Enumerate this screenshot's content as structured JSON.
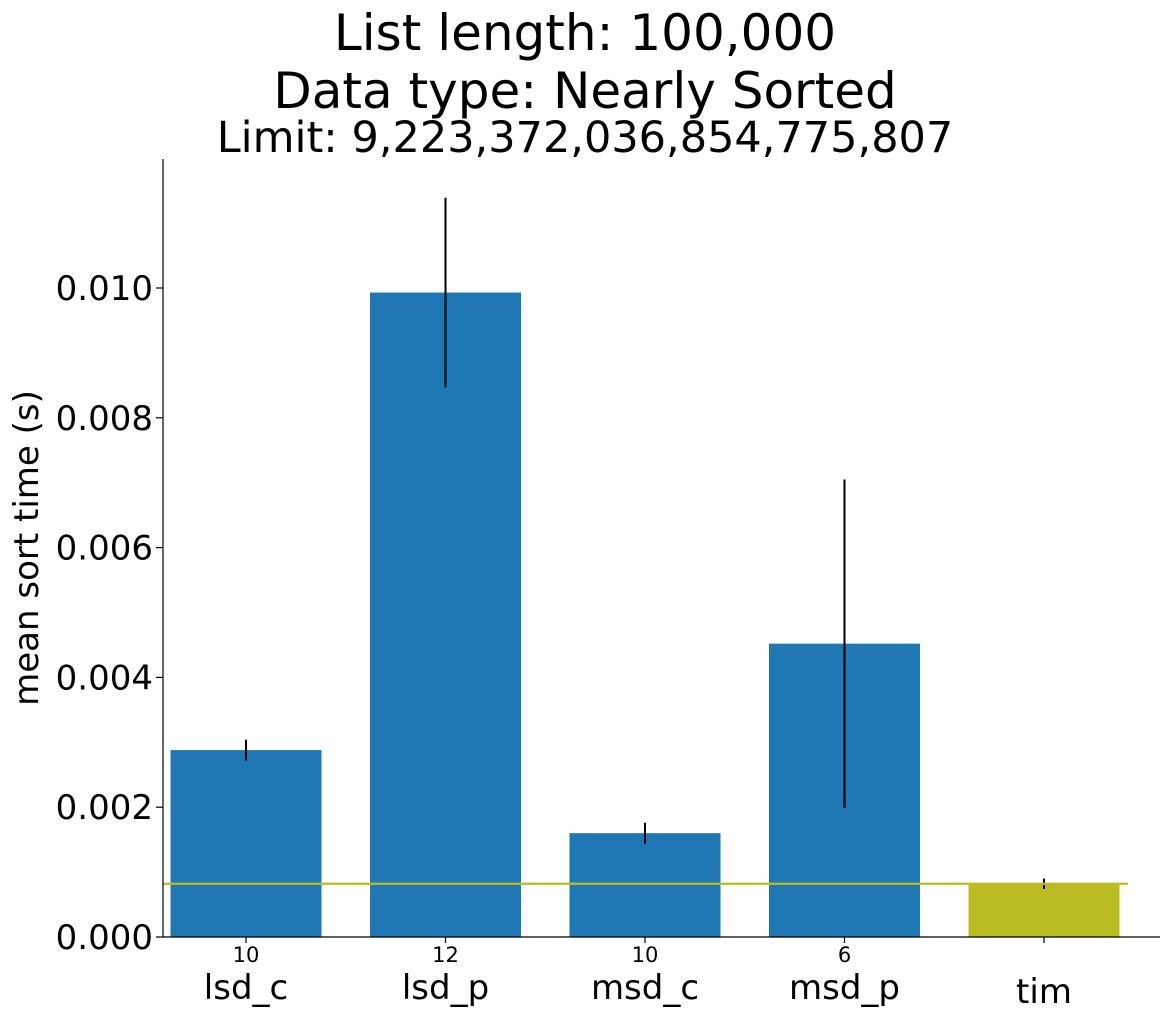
{
  "chart_data": {
    "type": "bar",
    "title_lines": [
      "List length: 100,000",
      "Data type: Nearly Sorted"
    ],
    "subtitle": "Limit: 9,223,372,036,854,775,807",
    "xlabel": "",
    "ylabel": "mean sort time (s)",
    "ylim": [
      0,
      0.0119
    ],
    "yticks": [
      0.0,
      0.002,
      0.004,
      0.006,
      0.008,
      0.01
    ],
    "ytick_labels": [
      "0.000",
      "0.002",
      "0.004",
      "0.006",
      "0.008",
      "0.010"
    ],
    "categories": [
      "lsd_c",
      "lsd_p",
      "msd_c",
      "msd_p",
      "tim"
    ],
    "values": [
      0.00288,
      0.00993,
      0.0016,
      0.00452,
      0.00082
    ],
    "errors": [
      0.00016,
      0.00146,
      0.00016,
      0.00253,
      8e-05
    ],
    "counts": [
      "10",
      "12",
      "10",
      "6",
      ""
    ],
    "bar_colors": [
      "#1f77b4",
      "#1f77b4",
      "#1f77b4",
      "#1f77b4",
      "#bcbd22"
    ],
    "reference_line": {
      "value": 0.00082,
      "color": "#bcbd22"
    },
    "grid": false
  }
}
